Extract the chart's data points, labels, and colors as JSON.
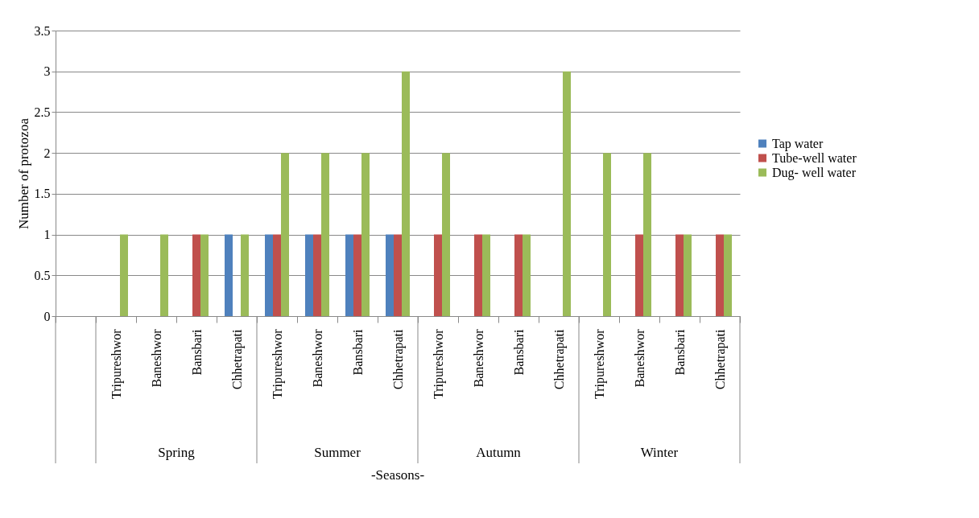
{
  "chart_data": {
    "type": "bar",
    "xlabel": "-Seasons-",
    "ylabel": "Number of protozoa",
    "categories": [
      null,
      "Tripureshwor",
      "Baneshwor",
      "Bansbari",
      "Chhetrapati",
      "Tripureshwor",
      "Baneshwor",
      "Bansbari",
      "Chhetrapati",
      "Tripureshwor",
      "Baneshwor",
      "Bansbari",
      "Chhetrapati",
      "Tripureshwor",
      "Baneshwor",
      "Bansbari",
      "Chhetrapati"
    ],
    "series": [
      {
        "name": "Tap water",
        "color": "#4f81bd",
        "values": [
          null,
          0,
          0,
          0,
          1,
          1,
          1,
          1,
          1,
          0,
          0,
          0,
          0,
          0,
          0,
          0,
          0
        ]
      },
      {
        "name": "Tube-well water",
        "color": "#c0504d",
        "values": [
          null,
          0,
          0,
          1,
          0,
          1,
          1,
          1,
          1,
          1,
          1,
          1,
          0,
          0,
          1,
          1,
          1
        ]
      },
      {
        "name": "Dug- well water",
        "color": "#9bbb59",
        "values": [
          null,
          1,
          1,
          1,
          1,
          2,
          2,
          2,
          3,
          2,
          1,
          1,
          3,
          2,
          2,
          1,
          1
        ]
      }
    ],
    "annotations": [
      "Spring",
      "Summer",
      "Autumn",
      "Winter"
    ],
    "ylim": [
      0,
      3.5
    ],
    "yticks": [
      0,
      0.5,
      1,
      1.5,
      2,
      2.5,
      3,
      3.5
    ],
    "grid": "y",
    "legend": "right"
  }
}
